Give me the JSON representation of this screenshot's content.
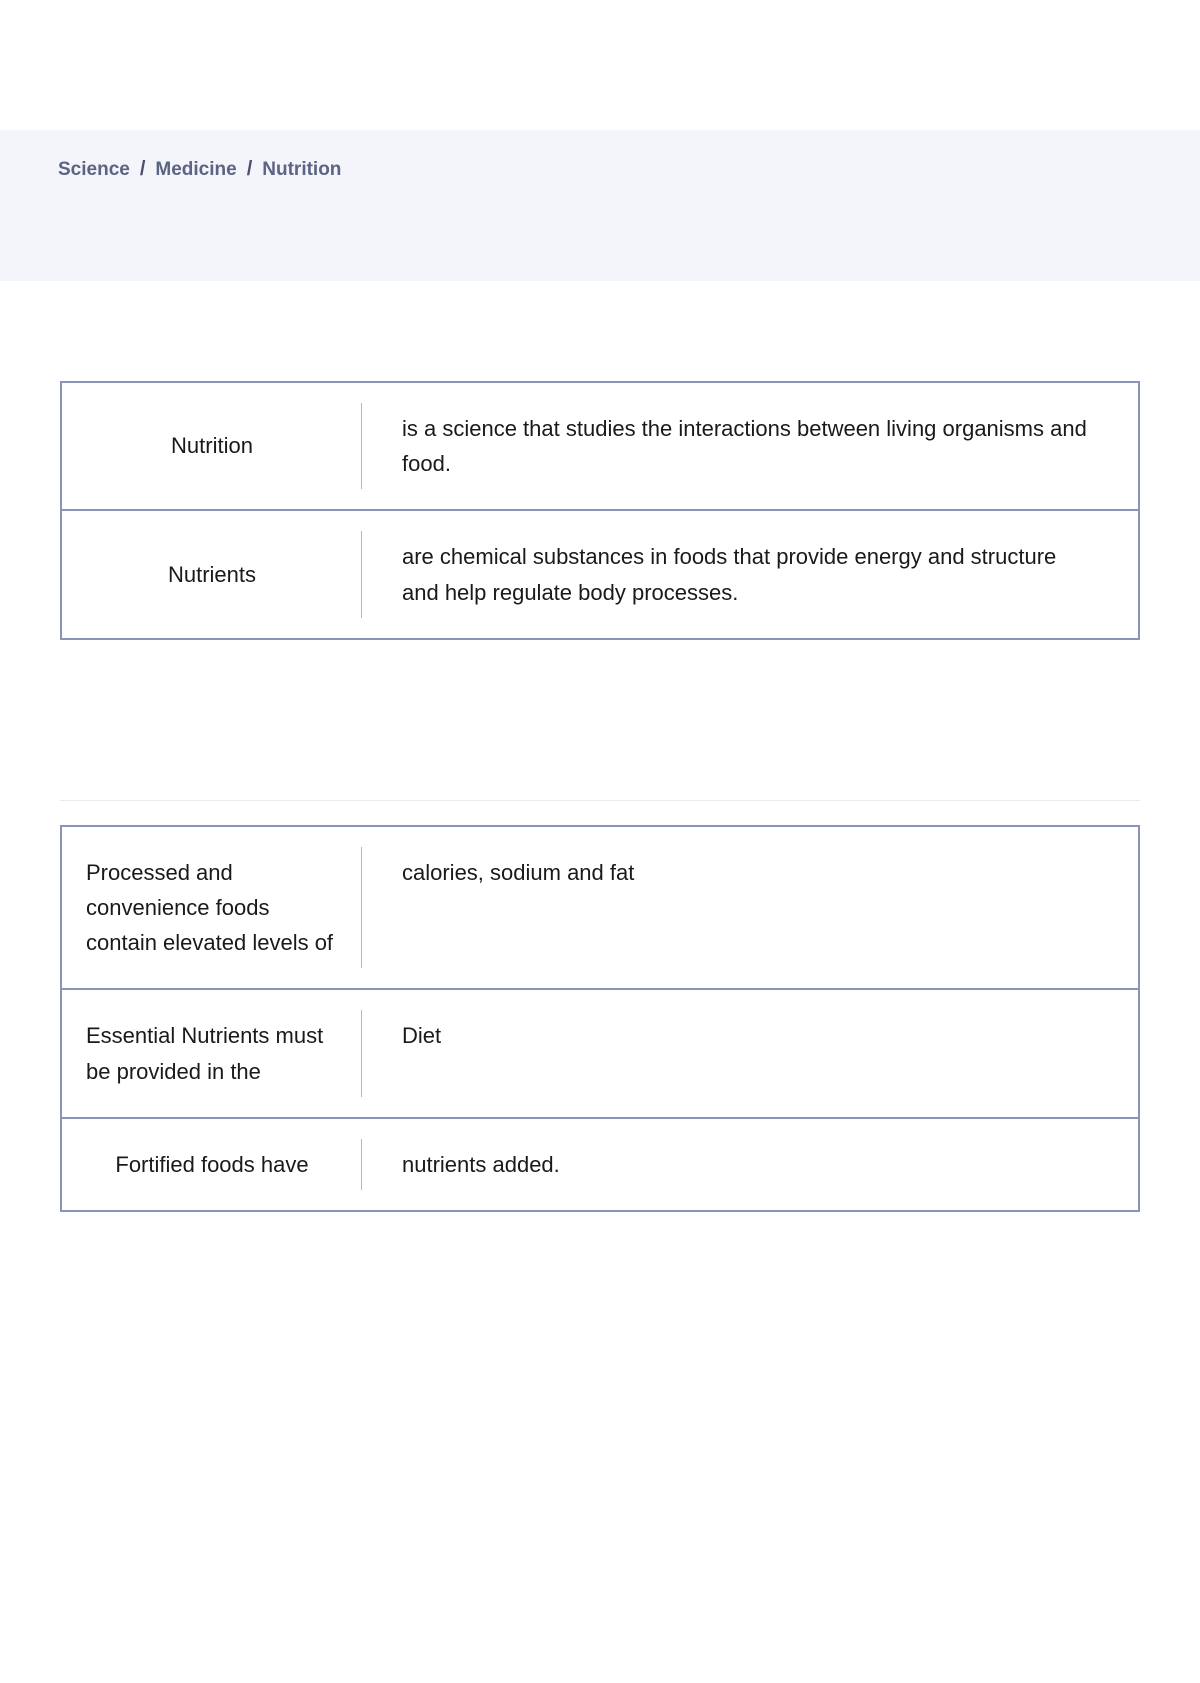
{
  "breadcrumb": {
    "items": [
      "Science",
      "Medicine",
      "Nutrition"
    ],
    "separator": "/"
  },
  "definitions": {
    "rows": [
      {
        "term": "Nutrition",
        "description": "is a science that studies the interactions between living organisms and food."
      },
      {
        "term": "Nutrients",
        "description": "are chemical substances in foods that provide energy and structure and help regulate body processes."
      }
    ]
  },
  "qa": {
    "rows": [
      {
        "question": "Processed and convenience foods contain elevated levels of",
        "answer": "calories, sodium and fat",
        "centered": false
      },
      {
        "question": "Essential Nutrients must be provided in the",
        "answer": "Diet",
        "centered": false
      },
      {
        "question": "Fortified foods have",
        "answer": "nutrients added.",
        "centered": true
      }
    ]
  },
  "colors": {
    "breadcrumb_bg": "#f3f5fa",
    "breadcrumb_text": "#5c6383",
    "table_border": "#8a93b8",
    "divider": "#b0b6ce",
    "body_text": "#1a1a1a",
    "background": "#ffffff"
  },
  "typography": {
    "breadcrumb_fontsize": 19,
    "table_fontsize": 22,
    "line_height": 1.6
  }
}
